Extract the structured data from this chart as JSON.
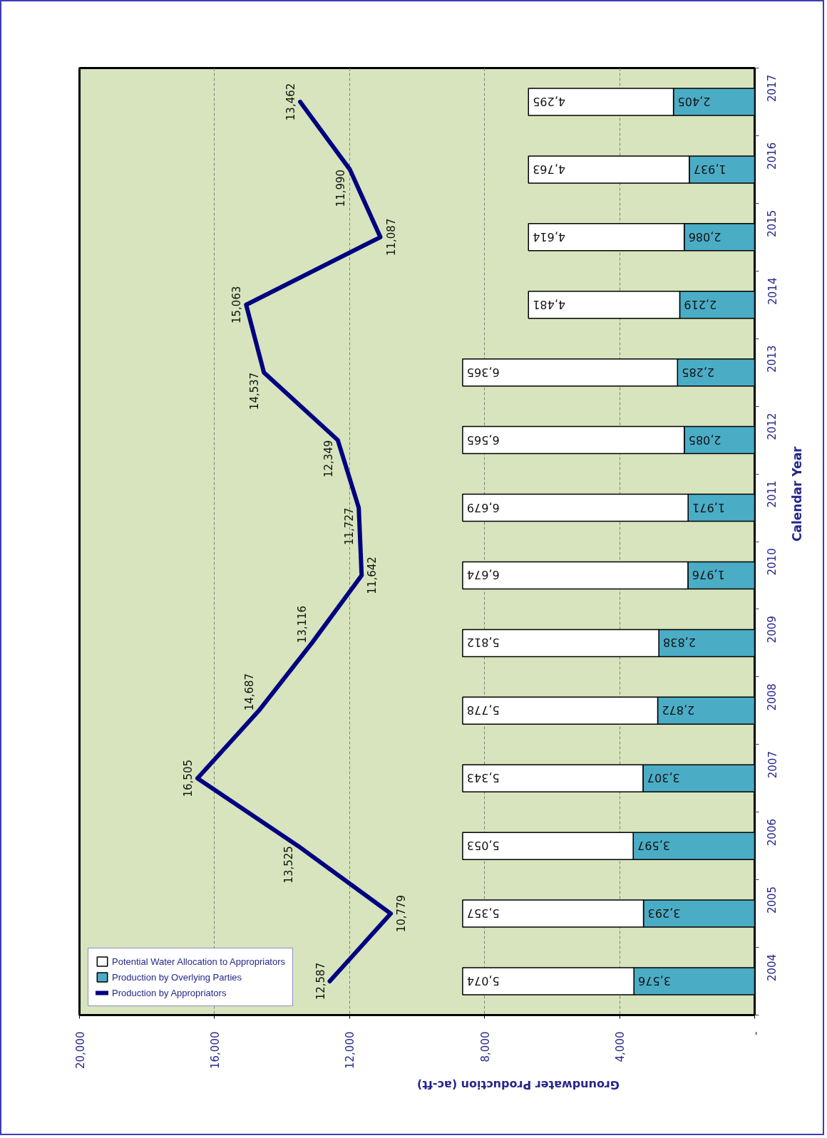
{
  "chart_data": {
    "type": "bar",
    "orientation": "horizontal",
    "stacked": true,
    "xlabel": "Groundwater Production (ac-ft)",
    "ylabel": "Calendar Year",
    "categories": [
      "2017",
      "2016",
      "2015",
      "2014",
      "2013",
      "2012",
      "2011",
      "2010",
      "2009",
      "2008",
      "2007",
      "2006",
      "2005",
      "2004"
    ],
    "series": [
      {
        "name": "Production by Overlying Parties",
        "color": "#4bacc6",
        "values": [
          2405,
          1937,
          2086,
          2219,
          2285,
          2085,
          1971,
          1976,
          2838,
          2872,
          3307,
          3597,
          3293,
          3576
        ],
        "value_labels": [
          "2,405",
          "1,937",
          "2,086",
          "2,219",
          "2,285",
          "2,085",
          "1,971",
          "1,976",
          "2,838",
          "2,872",
          "3,307",
          "3,597",
          "3,293",
          "3,576"
        ]
      },
      {
        "name": "Potential Water Allocation to Appropriators",
        "color": "#ffffff",
        "values": [
          4295,
          4763,
          4614,
          4481,
          6365,
          6565,
          6679,
          6674,
          5812,
          5778,
          5343,
          5053,
          5357,
          5074
        ],
        "value_labels": [
          "4,295",
          "4,763",
          "4,614",
          "4,481",
          "6,365",
          "6,565",
          "6,679",
          "6,674",
          "5,812",
          "5,778",
          "5,343",
          "5,053",
          "5,357",
          "5,074"
        ]
      },
      {
        "name": "Production by Appropriators",
        "type": "line",
        "color": "#000080",
        "values": [
          13462,
          11990,
          11087,
          15063,
          14537,
          12349,
          11727,
          11642,
          13116,
          14687,
          16505,
          13525,
          10779,
          12587
        ],
        "value_labels": [
          "13,462",
          "11,990",
          "11,087",
          "15,063",
          "14,537",
          "12,349",
          "11,727",
          "11,642",
          "13,116",
          "14,687",
          "16,505",
          "13,525",
          "10,779",
          "12,587"
        ]
      }
    ],
    "xlim": [
      20000,
      0
    ],
    "xticks": [
      {
        "value": 20000,
        "label": "20,000"
      },
      {
        "value": 16000,
        "label": "16,000"
      },
      {
        "value": 12000,
        "label": "12,000"
      },
      {
        "value": 8000,
        "label": "8,000"
      },
      {
        "value": 4000,
        "label": "4,000"
      },
      {
        "value": 0,
        "label": "-"
      }
    ],
    "grid": "x",
    "legend": "bottom left"
  }
}
